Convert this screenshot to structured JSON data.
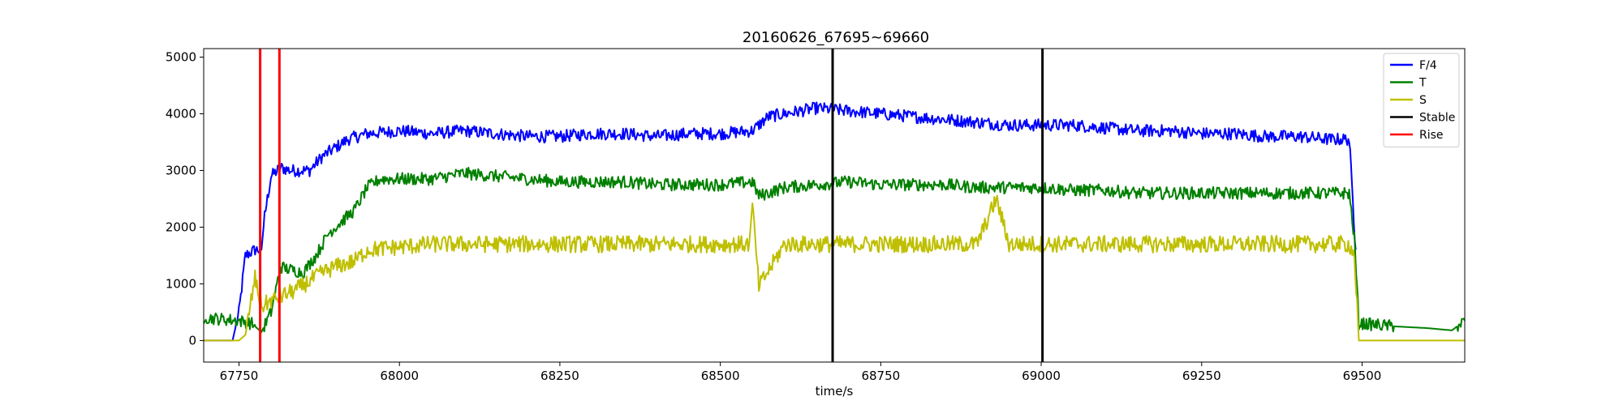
{
  "chart_data": {
    "type": "line",
    "title": "20160626_67695~69660",
    "xlabel": "time/s",
    "ylabel": "",
    "xlim": [
      67695,
      69660
    ],
    "ylim": [
      -380,
      5150
    ],
    "xticks": [
      67750,
      68000,
      68250,
      68500,
      68750,
      69000,
      69250,
      69500
    ],
    "xtick_labels": [
      "67750",
      "68000",
      "68250",
      "68500",
      "68750",
      "69000",
      "69250",
      "69500"
    ],
    "yticks": [
      0,
      1000,
      2000,
      3000,
      4000,
      5000
    ],
    "ytick_labels": [
      "0",
      "1000",
      "2000",
      "3000",
      "4000",
      "5000"
    ],
    "grid": false,
    "legend_position": "top-right",
    "series": [
      {
        "name": "F/4",
        "color": "#0000ff",
        "x": [
          67695,
          67740,
          67750,
          67760,
          67775,
          67785,
          67790,
          67800,
          67815,
          67830,
          67860,
          67880,
          67900,
          67920,
          67950,
          68000,
          68050,
          68100,
          68150,
          68200,
          68250,
          68300,
          68350,
          68400,
          68450,
          68500,
          68550,
          68575,
          68600,
          68650,
          68700,
          68750,
          68800,
          68850,
          68900,
          68950,
          69000,
          69050,
          69100,
          69150,
          69200,
          69250,
          69300,
          69350,
          69400,
          69450,
          69480,
          69490
        ],
        "y": [
          0,
          0,
          500,
          1500,
          1600,
          1600,
          2200,
          2900,
          3050,
          3000,
          3000,
          3250,
          3400,
          3550,
          3650,
          3700,
          3650,
          3700,
          3650,
          3600,
          3600,
          3650,
          3650,
          3600,
          3650,
          3650,
          3700,
          3950,
          4000,
          4100,
          4050,
          4000,
          3950,
          3900,
          3850,
          3800,
          3800,
          3800,
          3750,
          3700,
          3700,
          3650,
          3650,
          3600,
          3600,
          3550,
          3550,
          1600
        ]
      },
      {
        "name": "T",
        "color": "#008000",
        "x": [
          67695,
          67700,
          67750,
          67770,
          67785,
          67800,
          67815,
          67830,
          67850,
          67870,
          67890,
          67910,
          67930,
          67950,
          67970,
          68000,
          68050,
          68100,
          68150,
          68200,
          68250,
          68300,
          68350,
          68400,
          68450,
          68500,
          68550,
          68560,
          68600,
          68650,
          68700,
          68750,
          68800,
          68850,
          68900,
          68950,
          69000,
          69050,
          69100,
          69150,
          69200,
          69250,
          69300,
          69350,
          69400,
          69450,
          69480,
          69488,
          69495,
          69520,
          69550,
          69600,
          69640,
          69660
        ],
        "y": [
          300,
          400,
          350,
          300,
          150,
          500,
          1300,
          1250,
          1200,
          1500,
          1900,
          2100,
          2300,
          2700,
          2850,
          2850,
          2850,
          2950,
          2900,
          2850,
          2800,
          2800,
          2800,
          2750,
          2750,
          2750,
          2800,
          2550,
          2700,
          2750,
          2800,
          2750,
          2750,
          2750,
          2700,
          2700,
          2700,
          2650,
          2650,
          2600,
          2600,
          2600,
          2600,
          2600,
          2600,
          2600,
          2600,
          1800,
          300,
          280,
          250,
          220,
          180,
          350
        ]
      },
      {
        "name": "S",
        "color": "#bfbf00",
        "x": [
          67695,
          67750,
          67760,
          67775,
          67785,
          67800,
          67820,
          67840,
          67860,
          67880,
          67900,
          67930,
          67950,
          68000,
          68050,
          68100,
          68150,
          68200,
          68250,
          68300,
          68350,
          68400,
          68450,
          68500,
          68545,
          68550,
          68560,
          68600,
          68650,
          68700,
          68750,
          68800,
          68850,
          68900,
          68930,
          68950,
          69000,
          69050,
          69100,
          69150,
          69200,
          69250,
          69300,
          69350,
          69400,
          69450,
          69480,
          69488,
          69495,
          69660
        ],
        "y": [
          0,
          0,
          100,
          1100,
          600,
          700,
          800,
          900,
          1050,
          1200,
          1300,
          1400,
          1600,
          1650,
          1700,
          1700,
          1700,
          1700,
          1700,
          1700,
          1700,
          1700,
          1700,
          1700,
          1700,
          2400,
          950,
          1700,
          1700,
          1700,
          1700,
          1700,
          1700,
          1700,
          2500,
          1700,
          1700,
          1700,
          1700,
          1700,
          1700,
          1700,
          1700,
          1700,
          1700,
          1700,
          1700,
          1500,
          0,
          0
        ]
      }
    ],
    "vlines": [
      {
        "name": "Stable",
        "color": "#000000",
        "x": [
          68675,
          69002
        ]
      },
      {
        "name": "Rise",
        "color": "#ff0000",
        "x": [
          67783,
          67813
        ]
      }
    ],
    "legend": [
      {
        "label": "F/4",
        "color": "#0000ff"
      },
      {
        "label": "T",
        "color": "#008000"
      },
      {
        "label": "S",
        "color": "#bfbf00"
      },
      {
        "label": "Stable",
        "color": "#000000"
      },
      {
        "label": "Rise",
        "color": "#ff0000"
      }
    ]
  }
}
